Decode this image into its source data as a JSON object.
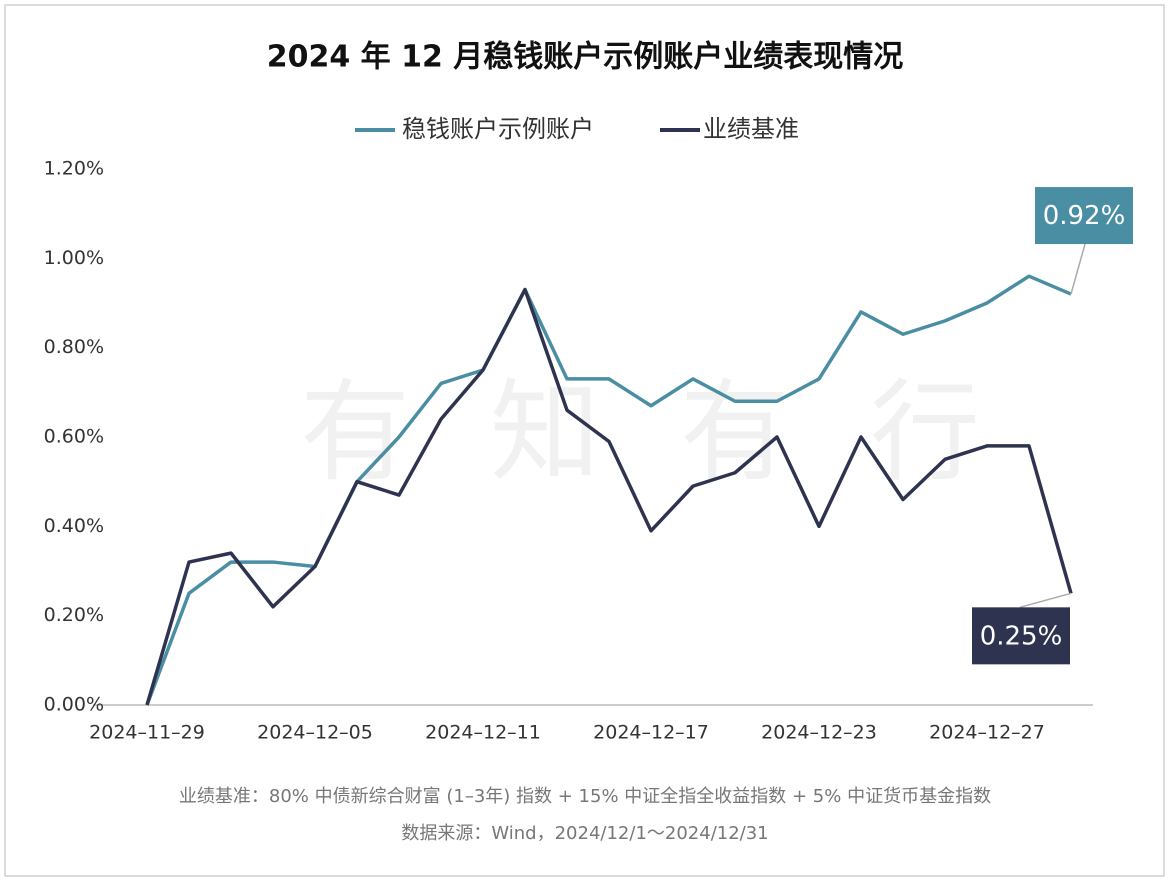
{
  "chart_data": {
    "type": "line",
    "title": "2024 年 12 月稳钱账户示例账户业绩表现情况",
    "categories": [
      "2024–11–29",
      null,
      null,
      null,
      "2024–12–05",
      null,
      null,
      null,
      "2024–12–11",
      null,
      null,
      null,
      "2024–12–17",
      null,
      null,
      null,
      "2024–12–23",
      null,
      null,
      null,
      "2024–12–27",
      null,
      null
    ],
    "series": [
      {
        "name": "稳钱账户示例账户",
        "color": "#4a8ea3",
        "values": [
          0,
          0.25,
          0.32,
          0.32,
          0.31,
          0.5,
          0.6,
          0.72,
          0.75,
          0.93,
          0.73,
          0.73,
          0.67,
          0.73,
          0.68,
          0.68,
          0.73,
          0.88,
          0.83,
          0.86,
          0.9,
          0.96,
          0.92
        ],
        "value_labels": [
          null,
          null,
          null,
          null,
          null,
          null,
          null,
          null,
          null,
          null,
          null,
          null,
          null,
          null,
          null,
          null,
          null,
          null,
          null,
          null,
          null,
          null,
          "0.92%"
        ]
      },
      {
        "name": "业绩基准",
        "color": "#2e3450",
        "values": [
          0,
          0.32,
          0.34,
          0.22,
          0.31,
          0.5,
          0.47,
          0.64,
          0.75,
          0.93,
          0.66,
          0.59,
          0.39,
          0.49,
          0.52,
          0.6,
          0.4,
          0.6,
          0.46,
          0.55,
          0.58,
          0.58,
          0.25
        ],
        "value_labels": [
          null,
          null,
          null,
          null,
          null,
          null,
          null,
          null,
          null,
          null,
          null,
          null,
          null,
          null,
          null,
          null,
          null,
          null,
          null,
          null,
          null,
          null,
          "0.25%"
        ]
      }
    ],
    "ylim": [
      0,
      1.2
    ],
    "yticks": [
      {
        "value": 0,
        "label": "0.00%"
      },
      {
        "value": 0.2,
        "label": "0.20%"
      },
      {
        "value": 0.4,
        "label": "0.40%"
      },
      {
        "value": 0.6,
        "label": "0.60%"
      },
      {
        "value": 0.8,
        "label": "0.80%"
      },
      {
        "value": 1.0,
        "label": "1.00%"
      },
      {
        "value": 1.2,
        "label": "1.20%"
      }
    ],
    "grid": false,
    "legend": "top",
    "watermark": "有知有行",
    "notes": [
      "业绩基准：80% 中债新综合财富 (1–3年) 指数 + 15% 中证全指全收益指数 + 5% 中证货币基金指数",
      "数据来源：Wind，2024/12/1～2024/12/31"
    ]
  }
}
